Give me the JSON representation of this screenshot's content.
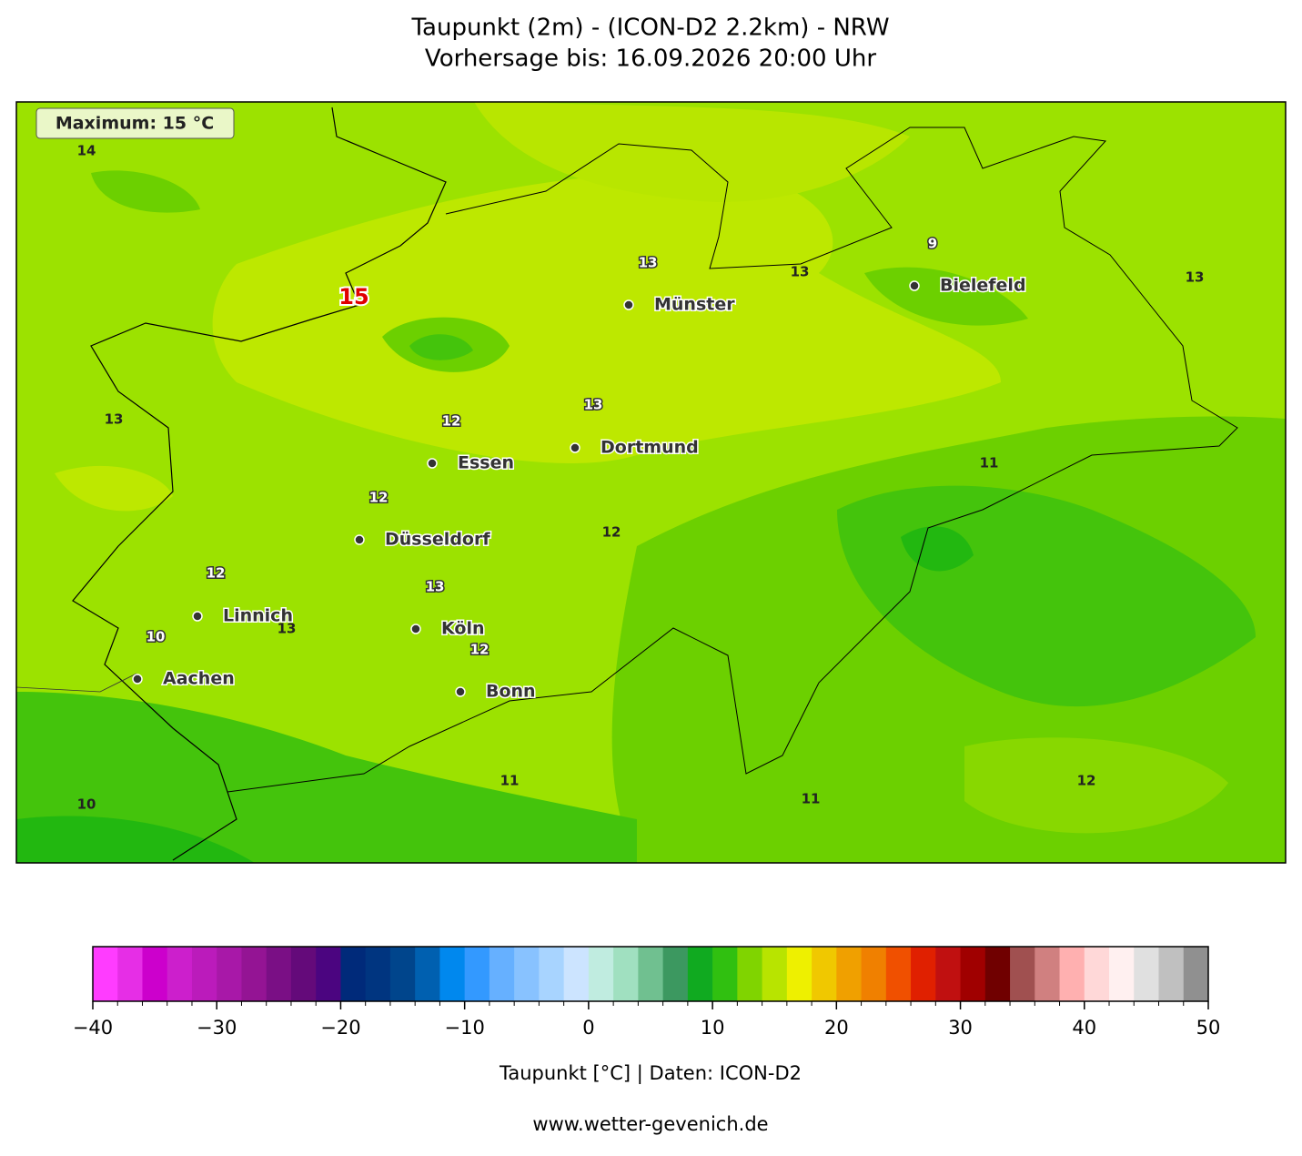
{
  "header": {
    "title": "Taupunkt (2m) - (ICON-D2 2.2km) - NRW",
    "subtitle": "Vorhersage bis: 16.09.2026 20:00 Uhr"
  },
  "map": {
    "maximum_box": "Maximum: 15 °C",
    "maximum_label": "15",
    "contour_labels": [
      "14",
      "13",
      "13",
      "9",
      "13",
      "13",
      "12",
      "13",
      "11",
      "12",
      "12",
      "12",
      "13",
      "13",
      "10",
      "12",
      "11",
      "11",
      "12",
      "10"
    ],
    "cities": [
      "Münster",
      "Bielefeld",
      "Dortmund",
      "Essen",
      "Düsseldorf",
      "Linnich",
      "Köln",
      "Bonn",
      "Aachen"
    ]
  },
  "colorbar": {
    "lim": [
      -40,
      50
    ],
    "ticks": [
      {
        "value": -40,
        "label": "−40"
      },
      {
        "value": -30,
        "label": "−30"
      },
      {
        "value": -20,
        "label": "−20"
      },
      {
        "value": -10,
        "label": "−10"
      },
      0,
      10,
      20,
      30,
      40,
      50
    ],
    "colors": [
      "#ff3cff",
      "#e62ee6",
      "#cc00cc",
      "#cc1fcc",
      "#bb1bbb",
      "#a818a8",
      "#941494",
      "#7a0f85",
      "#640a7a",
      "#4b0580",
      "#002a7a",
      "#003580",
      "#00458c",
      "#0060b0",
      "#0088ee",
      "#3399ff",
      "#66b0ff",
      "#88c2ff",
      "#a8d4ff",
      "#cce4ff",
      "#c0ece0",
      "#a0e0c0",
      "#70c090",
      "#3c9860",
      "#10aa20",
      "#30c010",
      "#80d400",
      "#b8e400",
      "#eef000",
      "#f0c800",
      "#f0a000",
      "#f08000",
      "#f05000",
      "#e02000",
      "#c01010",
      "#a00000",
      "#700000",
      "#a05050",
      "#d08080",
      "#ffb0b0",
      "#ffd8d8",
      "#fff0f0",
      "#e0e0e0",
      "#c0c0c0",
      "#909090"
    ],
    "label": "Taupunkt [°C] | Daten: ICON-D2"
  },
  "footer": "www.wetter-gevenich.de"
}
